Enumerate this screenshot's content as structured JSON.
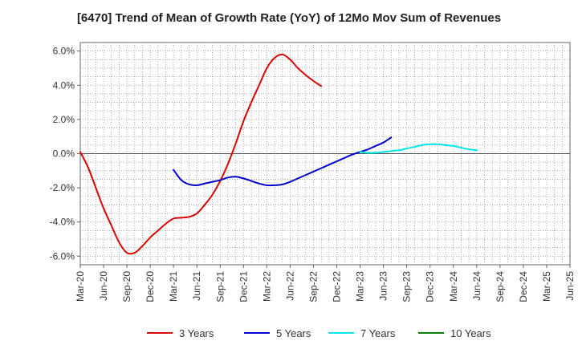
{
  "chart_data": {
    "type": "line",
    "title": "[6470]  Trend of Mean of Growth Rate (YoY) of 12Mo Mov Sum of Revenues",
    "xlabel": "",
    "ylabel": "",
    "x_ticks": [
      "Mar-20",
      "Jun-20",
      "Sep-20",
      "Dec-20",
      "Mar-21",
      "Jun-21",
      "Sep-21",
      "Dec-21",
      "Mar-22",
      "Jun-22",
      "Sep-22",
      "Dec-22",
      "Mar-23",
      "Jun-23",
      "Sep-23",
      "Dec-23",
      "Mar-24",
      "Jun-24",
      "Sep-24",
      "Dec-24",
      "Mar-25",
      "Jun-25"
    ],
    "y_ticks": [
      -6.0,
      -4.0,
      -2.0,
      0.0,
      2.0,
      4.0,
      6.0
    ],
    "y_tick_labels": [
      "-6.0%",
      "-4.0%",
      "-2.0%",
      "0.0%",
      "2.0%",
      "4.0%",
      "6.0%"
    ],
    "ylim": [
      -6.5,
      6.5
    ],
    "grid": true,
    "legend_position": "bottom",
    "series": [
      {
        "name": "3 Years",
        "color": "#dd0000",
        "start_index": 0,
        "values": [
          0.1,
          -0.8,
          -2.0,
          -3.2,
          -4.2,
          -5.2,
          -5.8,
          -5.8,
          -5.4,
          -4.9,
          -4.5,
          -4.1,
          -3.8,
          -3.75,
          -3.7,
          -3.5,
          -3.0,
          -2.4,
          -1.6,
          -0.6,
          0.6,
          1.9,
          3.0,
          4.0,
          5.0,
          5.6,
          5.8,
          5.5,
          5.0,
          4.6,
          4.25,
          3.95
        ]
      },
      {
        "name": "5 Years",
        "color": "#0000cc",
        "start_index": 4,
        "values": [
          -0.95,
          -1.55,
          -1.8,
          -1.85,
          -1.75,
          -1.65,
          -1.55,
          -1.4,
          -1.35,
          -1.45,
          -1.6,
          -1.75,
          -1.85,
          -1.85,
          -1.8,
          -1.65,
          -1.45,
          -1.25,
          -1.05,
          -0.85,
          -0.65,
          -0.45,
          -0.25,
          -0.05,
          0.1,
          0.25,
          0.45,
          0.65,
          0.95
        ]
      },
      {
        "name": "7 Years",
        "color": "#00e5e5",
        "start_index": 12,
        "values": [
          0.1,
          0.05,
          0.05,
          0.1,
          0.15,
          0.2,
          0.3,
          0.4,
          0.5,
          0.55,
          0.55,
          0.5,
          0.45,
          0.35,
          0.25,
          0.2
        ]
      },
      {
        "name": "10 Years",
        "color": "#008000",
        "start_index": 0,
        "values": []
      }
    ]
  }
}
